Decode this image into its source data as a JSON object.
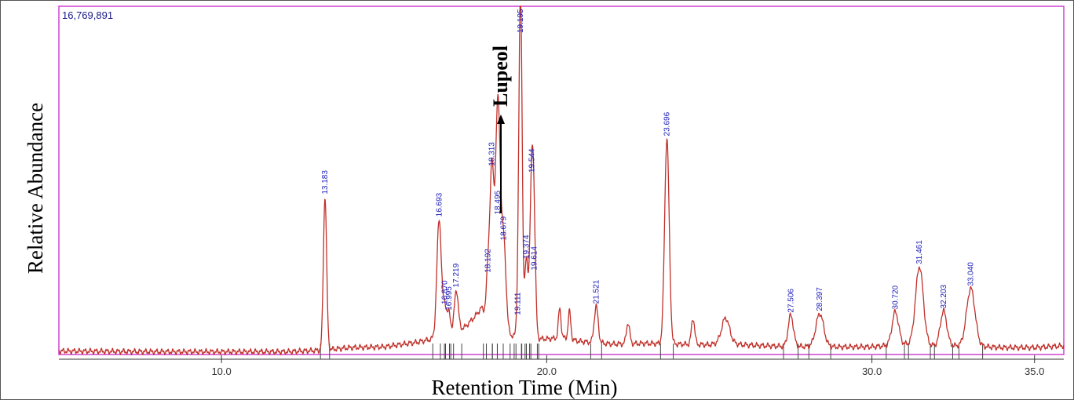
{
  "chart_data": {
    "type": "line",
    "max_abundance_label": "16,769,891",
    "ylabel": "Relative Abundance",
    "xlabel": "Retention Time (Min)",
    "xlim": [
      5.0,
      35.9
    ],
    "ylim": [
      0,
      100
    ],
    "x_ticks": [
      10.0,
      20.0,
      30.0,
      35.0
    ],
    "x_tick_labels": [
      "10.0",
      "20.0",
      "30.0",
      "35.0"
    ],
    "annotation": "Lupeol",
    "series_color": "#c0302a",
    "baseline": [
      [
        5.0,
        1.0
      ],
      [
        8.0,
        0.8
      ],
      [
        12.0,
        0.8
      ],
      [
        13.0,
        1.2
      ],
      [
        14.0,
        2.0
      ],
      [
        15.0,
        2.2
      ],
      [
        16.0,
        3.5
      ],
      [
        16.5,
        4.5
      ],
      [
        17.0,
        5.5
      ],
      [
        17.5,
        8.0
      ],
      [
        17.8,
        11.0
      ],
      [
        18.0,
        13.5
      ],
      [
        18.3,
        8.5
      ],
      [
        18.6,
        7.0
      ],
      [
        18.9,
        5.5
      ],
      [
        19.2,
        5.0
      ],
      [
        19.6,
        4.5
      ],
      [
        20.0,
        4.5
      ],
      [
        20.5,
        4.8
      ],
      [
        21.0,
        3.8
      ],
      [
        22.0,
        3.0
      ],
      [
        23.0,
        3.2
      ],
      [
        24.0,
        3.0
      ],
      [
        25.0,
        2.8
      ],
      [
        25.5,
        3.5
      ],
      [
        26.0,
        2.8
      ],
      [
        27.0,
        2.4
      ],
      [
        28.0,
        2.3
      ],
      [
        29.0,
        2.2
      ],
      [
        30.0,
        2.2
      ],
      [
        31.0,
        3.0
      ],
      [
        32.0,
        2.5
      ],
      [
        33.0,
        2.5
      ],
      [
        34.0,
        2.0
      ],
      [
        35.0,
        2.0
      ],
      [
        35.9,
        2.5
      ]
    ],
    "peaks": [
      {
        "rt": 13.183,
        "label": "13.183",
        "height": 44.0,
        "width": 0.05
      },
      {
        "rt": 16.693,
        "label": "16.693",
        "height": 34.0,
        "width": 0.07
      },
      {
        "rt": 16.87,
        "label": "16.870",
        "height": 8.5,
        "width": 0.05
      },
      {
        "rt": 16.995,
        "label": "16.995",
        "height": 6.5,
        "width": 0.05
      },
      {
        "rt": 17.219,
        "label": "17.219",
        "height": 12.0,
        "width": 0.06
      },
      {
        "rt": 18.192,
        "label": "18.192",
        "height": 12.5,
        "width": 0.05
      },
      {
        "rt": 18.313,
        "label": "18.313",
        "height": 45.0,
        "width": 0.06
      },
      {
        "rt": 18.45,
        "label": "",
        "height": 22.0,
        "width": 0.06
      },
      {
        "rt": 18.495,
        "label": "18.495",
        "height": 32.0,
        "width": 0.06
      },
      {
        "rt": 18.55,
        "label": "",
        "height": 25.0,
        "width": 0.06
      },
      {
        "rt": 18.679,
        "label": "18.679",
        "height": 25.5,
        "width": 0.07
      },
      {
        "rt": 19.111,
        "label": "19.111",
        "height": 5.5,
        "width": 0.04
      },
      {
        "rt": 19.195,
        "label": "19.195",
        "height": 100.0,
        "width": 0.05
      },
      {
        "rt": 19.374,
        "label": "19.374",
        "height": 22.0,
        "width": 0.05
      },
      {
        "rt": 19.544,
        "label": "19.544",
        "height": 47.0,
        "width": 0.06
      },
      {
        "rt": 19.614,
        "label": "19.614",
        "height": 19.0,
        "width": 0.05
      },
      {
        "rt": 20.4,
        "label": "",
        "height": 8.5,
        "width": 0.04
      },
      {
        "rt": 20.7,
        "label": "",
        "height": 8.0,
        "width": 0.04
      },
      {
        "rt": 21.521,
        "label": "21.521",
        "height": 10.5,
        "width": 0.06
      },
      {
        "rt": 22.5,
        "label": "",
        "height": 6.0,
        "width": 0.05
      },
      {
        "rt": 23.696,
        "label": "23.696",
        "height": 59.0,
        "width": 0.07
      },
      {
        "rt": 24.5,
        "label": "",
        "height": 7.5,
        "width": 0.05
      },
      {
        "rt": 25.5,
        "label": "",
        "height": 7.0,
        "width": 0.12
      },
      {
        "rt": 27.506,
        "label": "27.506",
        "height": 9.0,
        "width": 0.08
      },
      {
        "rt": 28.397,
        "label": "28.397",
        "height": 9.5,
        "width": 0.12
      },
      {
        "rt": 30.72,
        "label": "30.720",
        "height": 9.5,
        "width": 0.1
      },
      {
        "rt": 31.461,
        "label": "31.461",
        "height": 22.5,
        "width": 0.12
      },
      {
        "rt": 32.203,
        "label": "32.203",
        "height": 10.0,
        "width": 0.1
      },
      {
        "rt": 33.04,
        "label": "33.040",
        "height": 16.5,
        "width": 0.13
      }
    ]
  }
}
